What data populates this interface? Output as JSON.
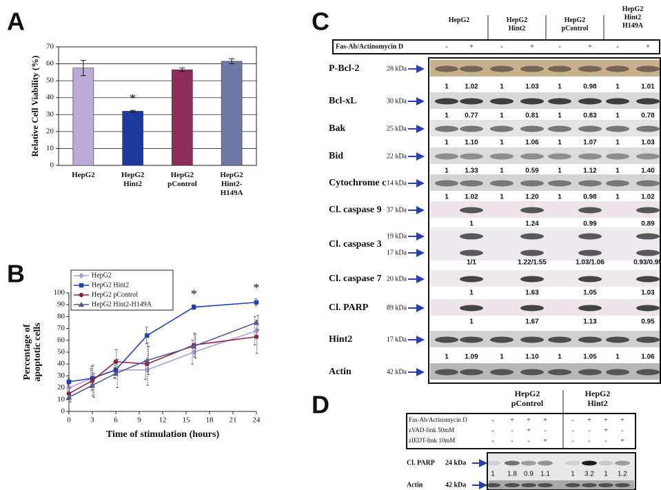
{
  "panel_labels": [
    "A",
    "B",
    "C",
    "D"
  ],
  "chart_data": [
    {
      "type": "bar",
      "y_label": "Relative Cell Viability (%)",
      "categories": [
        "HepG2",
        "HepG2\nHint2",
        "HepG2\npControl",
        "HepG2\nHint2-\nH149A"
      ],
      "values": [
        57.5,
        32,
        56.5,
        61.5
      ],
      "errors": [
        4.5,
        0.5,
        1,
        1.5
      ],
      "colors": [
        "#b9acd9",
        "#1d3b9e",
        "#8e2c5a",
        "#6d7aa6"
      ],
      "significance": [
        null,
        "*",
        null,
        null
      ],
      "ylim": [
        0,
        70
      ],
      "yticks": [
        0,
        10,
        20,
        30,
        40,
        50,
        60,
        70
      ],
      "grid": true
    },
    {
      "type": "line",
      "x_label": "Time of stimulation (hours)",
      "y_label": "Percentage of\napoptotic cells",
      "x": [
        0,
        3,
        6,
        10,
        16,
        24
      ],
      "series": [
        {
          "name": "HepG2",
          "color": "#b49ad6",
          "marker": "diamond",
          "values": [
            20,
            28,
            35,
            35,
            50,
            68
          ],
          "errors": [
            5,
            8,
            7,
            8,
            10,
            12
          ]
        },
        {
          "name": "HepG2 Hint2",
          "color": "#1f40b4",
          "marker": "square",
          "values": [
            25,
            28,
            35,
            64,
            88,
            92
          ],
          "errors": [
            3,
            10,
            7,
            7,
            2,
            3
          ]
        },
        {
          "name": "HepG2 pControl",
          "color": "#8b2244",
          "marker": "circle",
          "values": [
            15,
            26,
            42,
            40,
            56,
            63
          ],
          "errors": [
            5,
            13,
            10,
            18,
            10,
            14
          ]
        },
        {
          "name": "HepG2 Hint2-H149A",
          "color": "#555b8e",
          "marker": "triangle",
          "values": [
            12,
            22,
            32,
            43,
            55,
            75
          ],
          "errors": [
            4,
            10,
            12,
            12,
            10,
            6
          ]
        }
      ],
      "annotations": [
        {
          "text": "*",
          "x": 16
        },
        {
          "text": "*",
          "x": 24
        }
      ],
      "xlim": [
        0,
        24
      ],
      "xticks": [
        0,
        3,
        6,
        9,
        12,
        15,
        18,
        21,
        24
      ],
      "ylim": [
        0,
        100
      ],
      "yticks": [
        0,
        10,
        20,
        30,
        40,
        50,
        60,
        70,
        80,
        90,
        100
      ],
      "legend": "top-left",
      "grid": false
    }
  ],
  "panel_c": {
    "groups": [
      "HepG2",
      "HepG2\nHint2",
      "HepG2\npControl",
      "HepG2\nHint2\nH149A"
    ],
    "treatment": {
      "label": "Fas-Ab/Actinomycin D",
      "signs": [
        "-",
        "+",
        "-",
        "+",
        "-",
        "+",
        "-",
        "+"
      ]
    },
    "blots": [
      {
        "name": "P-Bcl-2",
        "kda": [
          "28 kDa"
        ],
        "values": [
          "1",
          "1.02",
          "1",
          "1.03",
          "1",
          "0.98",
          "1",
          "1.01"
        ]
      },
      {
        "name": "Bcl-xL",
        "kda": [
          "30 kDa"
        ],
        "values": [
          "1",
          "0.77",
          "1",
          "0.81",
          "1",
          "0.83",
          "1",
          "0.78"
        ]
      },
      {
        "name": "Bak",
        "kda": [
          "25 kDa"
        ],
        "values": [
          "1",
          "1.10",
          "1",
          "1.06",
          "1",
          "1.07",
          "1",
          "1.03"
        ]
      },
      {
        "name": "Bid",
        "kda": [
          "22 kDa"
        ],
        "values": [
          "1",
          "1.33",
          "1",
          "0.59",
          "1",
          "1.12",
          "1",
          "1.40"
        ]
      },
      {
        "name": "Cytochrome c",
        "kda": [
          "14 kDa"
        ],
        "values": [
          "1",
          "1.02",
          "1",
          "1.20",
          "1",
          "0.98",
          "1",
          "1.02"
        ]
      },
      {
        "name": "Cl. caspase 9",
        "kda": [
          "37 kDa"
        ],
        "values": [
          "1",
          "1.24",
          "0.99",
          "0.89"
        ]
      },
      {
        "name": "Cl. caspase 3",
        "kda": [
          "19 kDa",
          "17 kDa"
        ],
        "values": [
          "1/1",
          "1.22/1.55",
          "1.03/1.06",
          "0.93/0.95"
        ]
      },
      {
        "name": "Cl. caspase 7",
        "kda": [
          "20 kDa"
        ],
        "values": [
          "1",
          "1.63",
          "1.05",
          "1.03"
        ]
      },
      {
        "name": "Cl. PARP",
        "kda": [
          "89 kDa"
        ],
        "values": [
          "1",
          "1.67",
          "1.13",
          "0.95"
        ]
      },
      {
        "name": "Hint2",
        "kda": [
          "17 kDa"
        ],
        "values": [
          "1",
          "1.09",
          "1",
          "1.10",
          "1",
          "1.05",
          "1",
          "1.06"
        ]
      },
      {
        "name": "Actin",
        "kda": [
          "42 kDa"
        ]
      }
    ]
  },
  "panel_d": {
    "groups": [
      "HepG2\npControl",
      "HepG2\nHint2"
    ],
    "treatments": [
      {
        "label": "Fas-Ab/Actinomycin D",
        "signs": [
          "-",
          "+",
          "+",
          "+",
          "-",
          "+",
          "+",
          "+"
        ]
      },
      {
        "label": "zVAD-fmk 50mM",
        "signs": [
          "-",
          "-",
          "+",
          "-",
          "-",
          "-",
          "+",
          "-"
        ]
      },
      {
        "label": "zIEDT-fmk 10mM",
        "signs": [
          "-",
          "-",
          "-",
          "+",
          "-",
          "-",
          "-",
          "+"
        ]
      }
    ],
    "blots": [
      {
        "name": "Cl. PARP",
        "kda": [
          "24 kDa"
        ],
        "values": [
          "1",
          "1.8",
          "0.9",
          "1.1",
          "1",
          "3.2",
          "1",
          "1.2"
        ]
      },
      {
        "name": "Actin",
        "kda": [
          "42 kDa"
        ]
      }
    ]
  }
}
